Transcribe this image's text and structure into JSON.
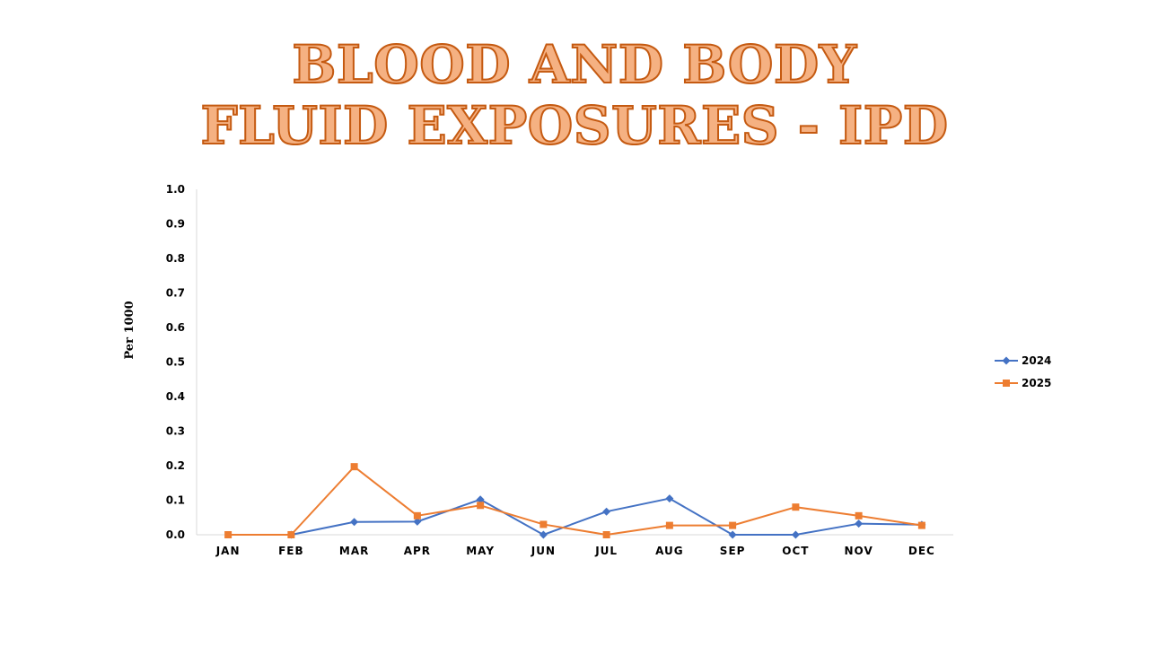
{
  "chart_data": {
    "type": "line",
    "title_line1": "BLOOD AND BODY",
    "title_line2": "FLUID EXPOSURES - IPD",
    "ylabel": "Per 1000",
    "xlabel": "",
    "categories": [
      "JAN",
      "FEB",
      "MAR",
      "APR",
      "MAY",
      "JUN",
      "JUL",
      "AUG",
      "SEP",
      "OCT",
      "NOV",
      "DEC"
    ],
    "ylim": [
      0,
      1.0
    ],
    "yticks": [
      "0.0",
      "0.1",
      "0.2",
      "0.3",
      "0.4",
      "0.5",
      "0.6",
      "0.7",
      "0.8",
      "0.9",
      "1.0"
    ],
    "grid": false,
    "legend_position": "right",
    "series": [
      {
        "name": "2024",
        "color": "#4472c4",
        "marker": "diamond",
        "values": [
          null,
          0,
          0.037,
          0.038,
          0.102,
          0,
          0.067,
          0.105,
          0,
          0,
          0.032,
          0.029
        ]
      },
      {
        "name": "2025",
        "color": "#ed7d31",
        "marker": "square",
        "values": [
          0,
          0,
          0.197,
          0.055,
          0.085,
          0.03,
          0,
          0.027,
          0.027,
          0.08,
          0.055,
          0.027
        ]
      }
    ]
  }
}
